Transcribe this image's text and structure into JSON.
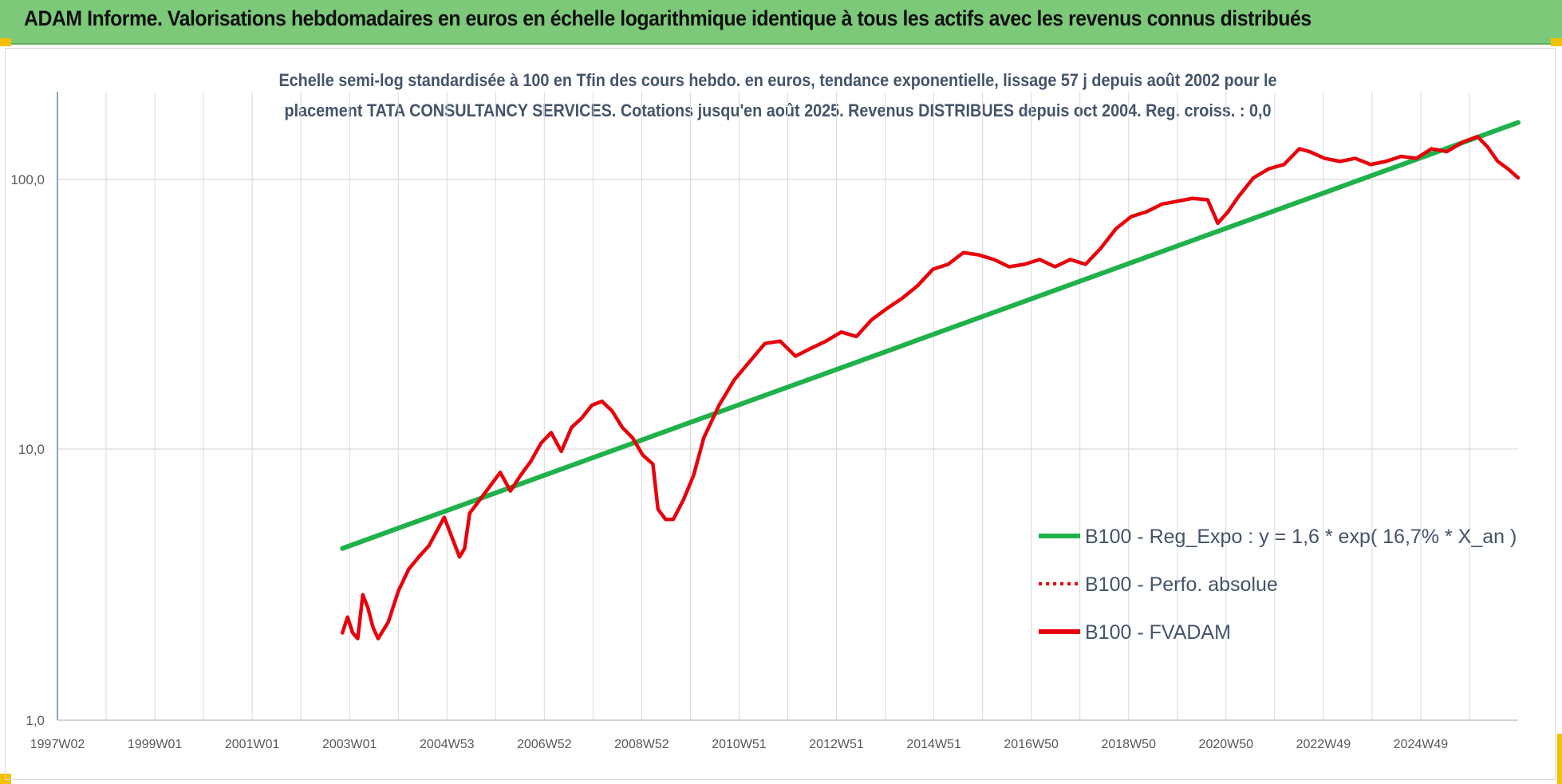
{
  "header": {
    "title": "ADAM Informe. Valorisations hebdomadaires en euros en échelle logarithmique identique à tous les actifs avec les revenus connus distribués"
  },
  "colors": {
    "banner": "#7dc97a",
    "regression": "#1fb14a",
    "fvadam": "#e8000b",
    "perfo": "#e8000b",
    "grid": "#d9d9d9",
    "text": "#44546a"
  },
  "chart_data": {
    "type": "line",
    "title_line1": "Echelle semi-log standardisée à 100 en Tfin des cours hebdo. en euros, tendance exponentielle, lissage 57 j depuis août 2002 pour le",
    "title_line2": "placement TATA CONSULTANCY SERVICES. Cotations jusqu'en août 2025. Revenus DISTRIBUES depuis oct 2004. Reg. croiss. : 0,0",
    "xlabel": "",
    "ylabel": "",
    "y_scale": "log",
    "ylim": [
      1,
      160
    ],
    "y_ticks": [
      "1,0",
      "10,0",
      "100,0"
    ],
    "x_ticks": [
      "1997W02",
      "1999W01",
      "2001W01",
      "2003W01",
      "2004W53",
      "2006W52",
      "2008W52",
      "2010W51",
      "2012W51",
      "2014W51",
      "2016W50",
      "2018W50",
      "2020W50",
      "2022W49",
      "2024W49"
    ],
    "x_range_years": [
      1997.0,
      2025.7
    ],
    "grid": "vertical and horizontal",
    "legend_position": "bottom-right",
    "legend": [
      {
        "label": "B100 - Reg_Expo : y = 1,6 * exp( 16,7% *  X_an )",
        "style": "solid-green"
      },
      {
        "label": "B100 - Perfo. absolue",
        "style": "dotted-red"
      },
      {
        "label": "B100 - FVADAM",
        "style": "solid-red"
      }
    ],
    "series": [
      {
        "name": "B100 - Reg_Expo : y = 1,6 * exp( 16,7% *  X_an )",
        "x": [
          2002.6,
          2025.7
        ],
        "y": [
          4.3,
          160
        ]
      },
      {
        "name": "B100 - FVADAM",
        "x": [
          2002.6,
          2002.7,
          2002.8,
          2002.9,
          2003.0,
          2003.1,
          2003.2,
          2003.3,
          2003.5,
          2003.7,
          2003.9,
          2004.1,
          2004.3,
          2004.6,
          2004.9,
          2005.0,
          2005.1,
          2005.3,
          2005.5,
          2005.7,
          2005.9,
          2006.1,
          2006.3,
          2006.5,
          2006.7,
          2006.9,
          2007.1,
          2007.3,
          2007.5,
          2007.7,
          2007.9,
          2008.1,
          2008.3,
          2008.5,
          2008.7,
          2008.8,
          2008.95,
          2009.1,
          2009.3,
          2009.5,
          2009.7,
          2010.0,
          2010.3,
          2010.6,
          2010.9,
          2011.2,
          2011.5,
          2011.8,
          2012.1,
          2012.4,
          2012.7,
          2013.0,
          2013.3,
          2013.6,
          2013.9,
          2014.2,
          2014.5,
          2014.8,
          2015.1,
          2015.4,
          2015.7,
          2016.0,
          2016.3,
          2016.6,
          2016.9,
          2017.2,
          2017.5,
          2017.8,
          2018.1,
          2018.4,
          2018.7,
          2019.0,
          2019.3,
          2019.6,
          2019.8,
          2020.0,
          2020.2,
          2020.5,
          2020.8,
          2021.1,
          2021.4,
          2021.6,
          2021.9,
          2022.2,
          2022.5,
          2022.8,
          2023.1,
          2023.4,
          2023.7,
          2024.0,
          2024.3,
          2024.6,
          2024.9,
          2025.1,
          2025.3,
          2025.5,
          2025.7
        ],
        "y": [
          2.1,
          2.4,
          2.1,
          2.0,
          2.9,
          2.6,
          2.2,
          2.0,
          2.3,
          3.0,
          3.6,
          4.0,
          4.4,
          5.6,
          4.0,
          4.3,
          5.8,
          6.5,
          7.3,
          8.2,
          7.0,
          8.0,
          9.0,
          10.5,
          11.5,
          9.8,
          12.0,
          13.0,
          14.5,
          15.0,
          13.8,
          12.0,
          11.0,
          9.5,
          8.8,
          6.0,
          5.5,
          5.5,
          6.5,
          8.0,
          11.0,
          14.5,
          18.0,
          21.0,
          24.5,
          25.0,
          22.0,
          23.5,
          25.0,
          27.0,
          26.0,
          30.0,
          33.0,
          36.0,
          40.0,
          46.0,
          48.0,
          53.0,
          52.0,
          50.0,
          47.0,
          48.0,
          50.0,
          47.0,
          50.0,
          48.0,
          55.0,
          65.0,
          72.0,
          75.0,
          80.0,
          82.0,
          84.0,
          83.0,
          68.0,
          75.0,
          85.0,
          100.0,
          108.0,
          112.0,
          128.0,
          125.0,
          118.0,
          115.0,
          118.0,
          112.0,
          115.0,
          120.0,
          118.0,
          128.0,
          125.0,
          135.0,
          142.0,
          130.0,
          115.0,
          108.0,
          100.0
        ]
      },
      {
        "name": "B100 - Perfo. absolue",
        "x": [],
        "y": []
      }
    ]
  }
}
